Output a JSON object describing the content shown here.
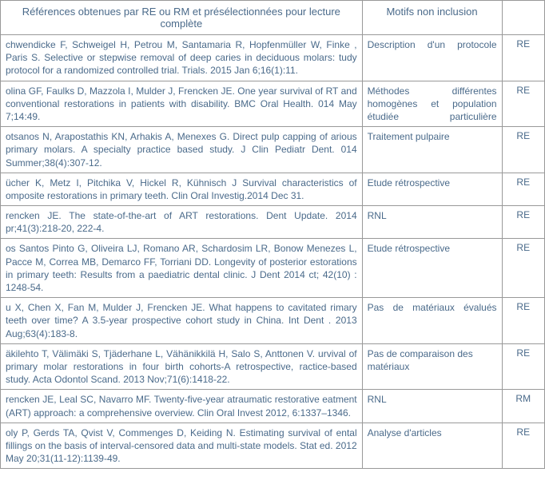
{
  "headers": {
    "col1": "Références obtenues par RE ou RM et présélectionnées pour lecture complète",
    "col2": "Motifs non inclusion",
    "col3": ""
  },
  "rows": [
    {
      "ref": "chwendicke F, Schweigel H, Petrou M, Santamaria R, Hopfenmüller W, Finke , Paris S. Selective or stepwise removal of deep caries in deciduous molars: tudy protocol for a randomized controlled trial. Trials. 2015 Jan 6;16(1):11.",
      "motif": "Description d'un protocole",
      "motif_justify": true,
      "mode": "RE"
    },
    {
      "ref": "olina GF, Faulks D, Mazzola I, Mulder J, Frencken JE. One year survival of RT and conventional restorations in patients with disability. BMC Oral Health. 014 May 7;14:49.",
      "motif": "Méthodes différentes homogènes et population étudiée particulière",
      "motif_justify": true,
      "mode": "RE"
    },
    {
      "ref": "otsanos N, Arapostathis KN, Arhakis A, Menexes G.  Direct pulp capping of arious primary molars. A specialty practice based study.  J Clin Pediatr Dent. 014 Summer;38(4):307-12.",
      "motif": "Traitement pulpaire",
      "motif_justify": false,
      "mode": "RE"
    },
    {
      "ref": "ücher K, Metz I, Pitchika V, Hickel R, Kühnisch J Survival characteristics of omposite restorations in primary teeth. Clin Oral Investig.2014 Dec 31.",
      "motif": "Etude rétrospective",
      "motif_justify": false,
      "mode": "RE"
    },
    {
      "ref": "rencken JE. The state-of-the-art of ART restorations. Dent Update. 2014 pr;41(3):218-20, 222-4.",
      "motif": "RNL",
      "motif_justify": false,
      "mode": "RE"
    },
    {
      "ref": "os Santos Pinto G, Oliveira LJ, Romano AR, Schardosim LR, Bonow Menezes L, Pacce M, Correa MB, Demarco FF, Torriani DD. Longevity of posterior estorations in primary teeth: Results from a paediatric dental clinic. J Dent 2014 ct; 42(10) : 1248-54.",
      "motif": "Etude rétrospective",
      "motif_justify": false,
      "mode": "RE"
    },
    {
      "ref": "u X, Chen X, Fan M, Mulder J, Frencken JE. What happens to cavitated rimary teeth over time? A 3.5-year prospective cohort study in China. Int Dent . 2013 Aug;63(4):183-8.",
      "motif": "Pas de matériaux évalués",
      "motif_justify": true,
      "mode": "RE"
    },
    {
      "ref": "äkilehto T, Välimäki S, Tjäderhane L, Vähänikkilä H, Salo S, Anttonen V. urvival of primary molar restorations in four birth cohorts-A retrospective, ractice-based study. Acta Odontol Scand. 2013 Nov;71(6):1418-22.",
      "motif": "Pas de comparaison des matériaux",
      "motif_justify": false,
      "mode": "RE"
    },
    {
      "ref": "rencken JE, Leal SC, Navarro MF. Twenty-five-year atraumatic restorative eatment (ART) approach: a comprehensive overview. Clin Oral Invest 2012, 6:1337–1346.",
      "motif": "RNL",
      "motif_justify": false,
      "mode": "RM"
    },
    {
      "ref": "oly P, Gerds TA, Qvist V, Commenges D, Keiding N. Estimating survival of ental fillings on the basis of interval-censored data and multi-state models. Stat ed. 2012 May 20;31(11-12):1139-49.",
      "motif": "Analyse d'articles",
      "motif_justify": false,
      "mode": "RE"
    }
  ]
}
